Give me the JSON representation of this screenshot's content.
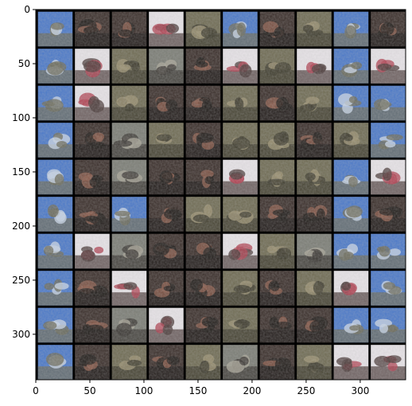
{
  "image_grid": {
    "rows": 10,
    "cols": 10,
    "pixel_extent": {
      "x": [
        0,
        342
      ],
      "y": [
        0,
        342
      ]
    },
    "x_ticks": [
      0,
      50,
      100,
      150,
      200,
      250,
      300
    ],
    "y_ticks": [
      0,
      50,
      100,
      150,
      200,
      250,
      300
    ],
    "tile_palettes": {
      "sky": [
        "#4a78c8",
        "#c8d4e6",
        "#6b6a5a"
      ],
      "dark": [
        "#3a2e2a",
        "#8a5a4a",
        "#1e1a18"
      ],
      "olive": [
        "#6e6a52",
        "#9a9070",
        "#3c3a2c"
      ],
      "bright": [
        "#e8e4e8",
        "#b04050",
        "#4a3a38"
      ],
      "grey": [
        "#7a7c74",
        "#a8a496",
        "#3a3632"
      ]
    },
    "tile_styles": [
      [
        "sky",
        "dark",
        "dark",
        "bright",
        "olive",
        "sky",
        "dark",
        "olive",
        "sky",
        "dark"
      ],
      [
        "sky",
        "bright",
        "olive",
        "grey",
        "dark",
        "bright",
        "olive",
        "bright",
        "sky",
        "bright"
      ],
      [
        "sky",
        "bright",
        "olive",
        "dark",
        "dark",
        "olive",
        "dark",
        "olive",
        "sky",
        "sky"
      ],
      [
        "sky",
        "dark",
        "grey",
        "olive",
        "dark",
        "olive",
        "olive",
        "dark",
        "olive",
        "sky"
      ],
      [
        "sky",
        "dark",
        "grey",
        "dark",
        "dark",
        "bright",
        "olive",
        "olive",
        "sky",
        "bright"
      ],
      [
        "sky",
        "dark",
        "sky",
        "dark",
        "olive",
        "olive",
        "dark",
        "dark",
        "sky",
        "dark"
      ],
      [
        "sky",
        "bright",
        "grey",
        "dark",
        "dark",
        "bright",
        "olive",
        "grey",
        "sky",
        "sky"
      ],
      [
        "sky",
        "dark",
        "bright",
        "dark",
        "dark",
        "olive",
        "dark",
        "olive",
        "bright",
        "sky"
      ],
      [
        "sky",
        "dark",
        "grey",
        "bright",
        "dark",
        "olive",
        "dark",
        "dark",
        "sky",
        "sky"
      ],
      [
        "sky",
        "dark",
        "olive",
        "dark",
        "olive",
        "grey",
        "dark",
        "olive",
        "bright",
        "bright"
      ]
    ]
  }
}
